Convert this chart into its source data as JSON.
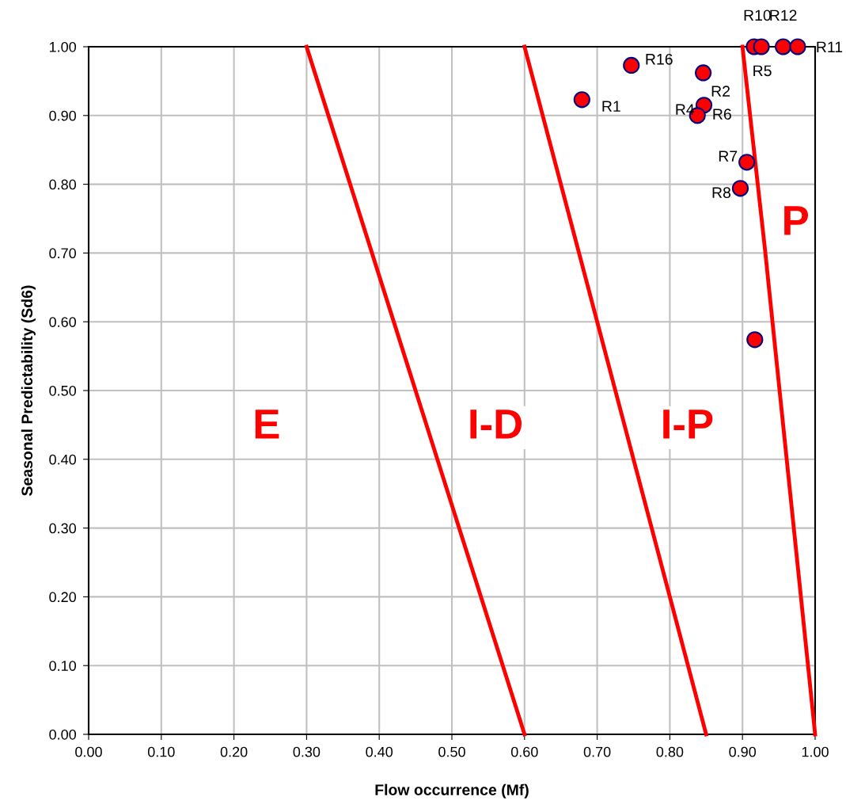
{
  "chart_data": {
    "type": "scatter",
    "xlabel": "Flow occurrence (Mf)",
    "ylabel": "Seasonal Predictability (Sd6)",
    "xlim": [
      0,
      1
    ],
    "ylim": [
      0,
      1
    ],
    "xticks": [
      {
        "value": 0,
        "label": "0.00"
      },
      {
        "value": 0.1,
        "label": "0.10"
      },
      {
        "value": 0.2,
        "label": "0.20"
      },
      {
        "value": 0.3,
        "label": "0.30"
      },
      {
        "value": 0.4,
        "label": "0.40"
      },
      {
        "value": 0.5,
        "label": "0.50"
      },
      {
        "value": 0.6,
        "label": "0.60"
      },
      {
        "value": 0.7,
        "label": "0.70"
      },
      {
        "value": 0.8,
        "label": "0.80"
      },
      {
        "value": 0.9,
        "label": "0.90"
      },
      {
        "value": 1,
        "label": "1.00"
      }
    ],
    "yticks": [
      {
        "value": 0,
        "label": "0.00"
      },
      {
        "value": 0.1,
        "label": "0.10"
      },
      {
        "value": 0.2,
        "label": "0.20"
      },
      {
        "value": 0.3,
        "label": "0.30"
      },
      {
        "value": 0.4,
        "label": "0.40"
      },
      {
        "value": 0.5,
        "label": "0.50"
      },
      {
        "value": 0.6,
        "label": "0.60"
      },
      {
        "value": 0.7,
        "label": "0.70"
      },
      {
        "value": 0.8,
        "label": "0.80"
      },
      {
        "value": 0.9,
        "label": "0.90"
      },
      {
        "value": 1,
        "label": "1.00"
      }
    ],
    "grid": true,
    "series": [
      {
        "marker": "circle",
        "color": "#ff0000",
        "x": [
          0.679,
          0.747,
          0.846,
          0.847,
          0.838,
          0.906,
          0.897,
          0.917,
          0.916,
          0.926,
          0.956,
          0.976
        ],
        "values": [
          0.923,
          0.973,
          0.962,
          0.915,
          0.9,
          0.832,
          0.794,
          0.574,
          1.0,
          1.0,
          1.0,
          1.0
        ]
      },
      {
        "type": "line",
        "marker": "none",
        "color": "#ff0000",
        "x": [
          0.3,
          0.6
        ],
        "values": [
          1.0,
          0.0
        ]
      },
      {
        "type": "line",
        "marker": "none",
        "color": "#ff0000",
        "x": [
          0.6,
          0.85
        ],
        "values": [
          1.0,
          0.0
        ]
      },
      {
        "type": "line",
        "marker": "none",
        "color": "#ff0000",
        "x": [
          0.9,
          0.931,
          1.0
        ],
        "values": [
          1.0,
          0.705,
          0.0
        ]
      }
    ],
    "annotations": [
      {
        "text": "R1",
        "x": 0.679,
        "y": 0.923
      },
      {
        "text": "R16",
        "x": 0.747,
        "y": 0.973
      },
      {
        "text": "R2",
        "x": 0.847,
        "y": 0.915
      },
      {
        "text": "R4",
        "x": 0.838,
        "y": 0.9
      },
      {
        "text": "R6",
        "x": 0.838,
        "y": 0.9
      },
      {
        "text": "R7",
        "x": 0.906,
        "y": 0.832
      },
      {
        "text": "R8",
        "x": 0.897,
        "y": 0.794
      },
      {
        "text": "R10",
        "x": 0.916,
        "y": 1.0
      },
      {
        "text": "R5",
        "x": 0.926,
        "y": 1.0
      },
      {
        "text": "R12",
        "x": 0.956,
        "y": 1.0
      },
      {
        "text": "R11",
        "x": 0.976,
        "y": 1.0
      },
      "E",
      "I-D",
      "I-P",
      "P"
    ]
  }
}
